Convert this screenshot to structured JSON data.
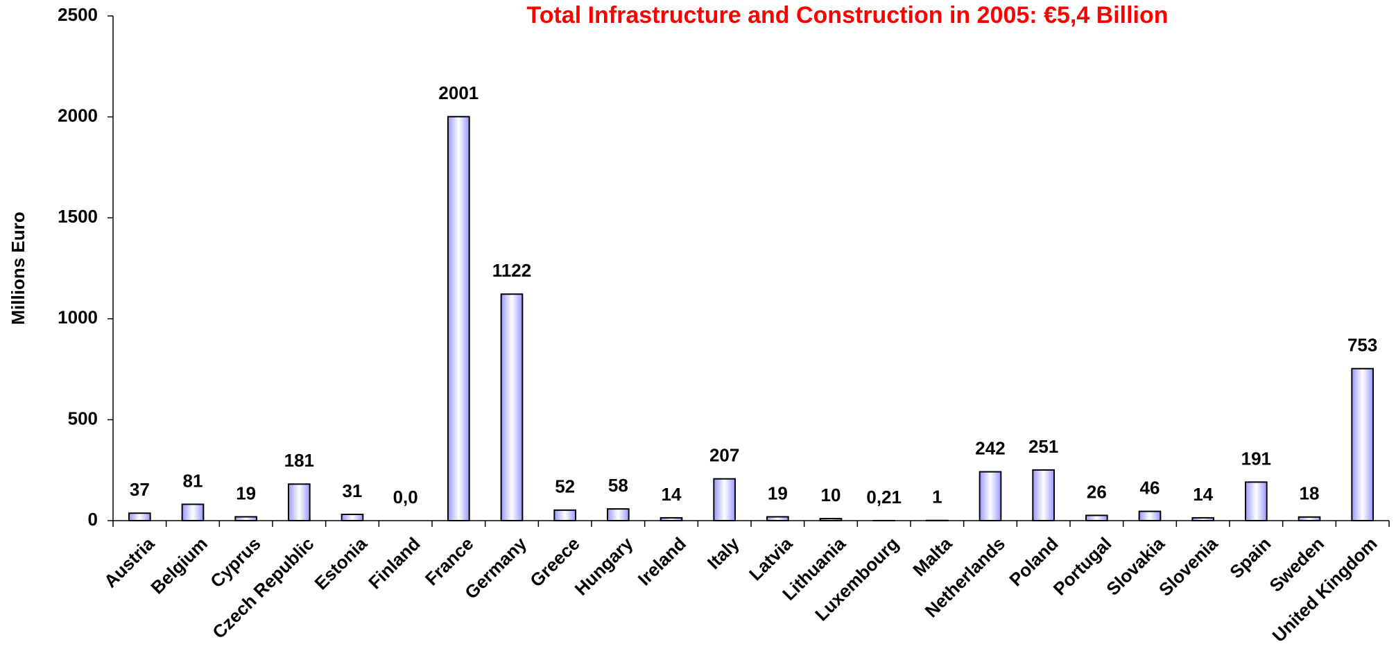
{
  "chart_data": {
    "type": "bar",
    "title": "Total Infrastructure and Construction in 2005: €5,4 Billion",
    "y_label": "Millions Euro",
    "categories": [
      "Austria",
      "Belgium",
      "Cyprus",
      "Czech Republic",
      "Estonia",
      "Finland",
      "France",
      "Germany",
      "Greece",
      "Hungary",
      "Ireland",
      "Italy",
      "Latvia",
      "Lithuania",
      "Luxembourg",
      "Malta",
      "Netherlands",
      "Poland",
      "Portugal",
      "Slovakia",
      "Slovenia",
      "Spain",
      "Sweden",
      "United Kingdom"
    ],
    "values": [
      37,
      81,
      19,
      181,
      31,
      0,
      2001,
      1122,
      52,
      58,
      14,
      207,
      19,
      10,
      0.21,
      1,
      242,
      251,
      26,
      46,
      14,
      191,
      18,
      753
    ],
    "value_labels": [
      "37",
      "81",
      "19",
      "181",
      "31",
      "0,0",
      "2001",
      "1122",
      "52",
      "58",
      "14",
      "207",
      "19",
      "10",
      "0,21",
      "1",
      "242",
      "251",
      "26",
      "46",
      "14",
      "191",
      "18",
      "753"
    ],
    "color": "#9999ff",
    "ylim": [
      0,
      2500
    ],
    "yticks": [
      0,
      500,
      1000,
      1500,
      2000,
      2500
    ],
    "grid": false
  }
}
